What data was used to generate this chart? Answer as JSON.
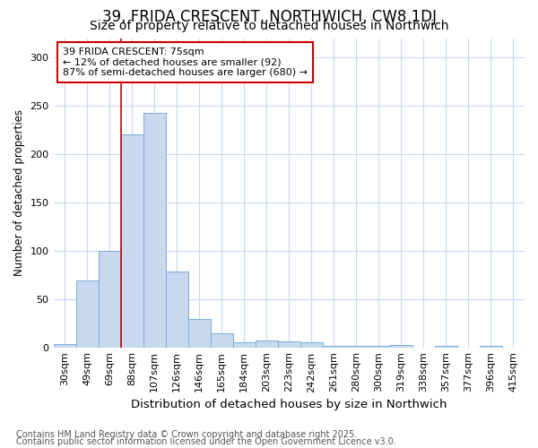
{
  "title": "39, FRIDA CRESCENT, NORTHWICH, CW8 1DJ",
  "subtitle": "Size of property relative to detached houses in Northwich",
  "xlabel": "Distribution of detached houses by size in Northwich",
  "ylabel": "Number of detached properties",
  "categories": [
    "30sqm",
    "49sqm",
    "69sqm",
    "88sqm",
    "107sqm",
    "126sqm",
    "146sqm",
    "165sqm",
    "184sqm",
    "203sqm",
    "223sqm",
    "242sqm",
    "261sqm",
    "280sqm",
    "300sqm",
    "319sqm",
    "338sqm",
    "357sqm",
    "377sqm",
    "396sqm",
    "415sqm"
  ],
  "values": [
    3,
    69,
    100,
    220,
    243,
    78,
    29,
    14,
    5,
    7,
    6,
    5,
    1,
    1,
    1,
    2,
    0,
    1,
    0,
    1,
    0
  ],
  "bar_color": "#c8d8ee",
  "bar_edge_color": "#7aadd4",
  "red_line_index": 2,
  "highlight_color": "#cc0000",
  "annotation_text_line1": "39 FRIDA CRESCENT: 75sqm",
  "annotation_text_line2": "← 12% of detached houses are smaller (92)",
  "annotation_text_line3": "87% of semi-detached houses are larger (680) →",
  "footnote1": "Contains HM Land Registry data © Crown copyright and database right 2025.",
  "footnote2": "Contains public sector information licensed under the Open Government Licence v3.0.",
  "background_color": "#ffffff",
  "plot_background": "#ffffff",
  "grid_color": "#c8d8f0",
  "ylim": [
    0,
    320
  ],
  "yticks": [
    0,
    50,
    100,
    150,
    200,
    250,
    300
  ],
  "title_fontsize": 12,
  "subtitle_fontsize": 10,
  "xlabel_fontsize": 9.5,
  "ylabel_fontsize": 8.5,
  "tick_fontsize": 8,
  "annotation_fontsize": 8,
  "footnote_fontsize": 7
}
